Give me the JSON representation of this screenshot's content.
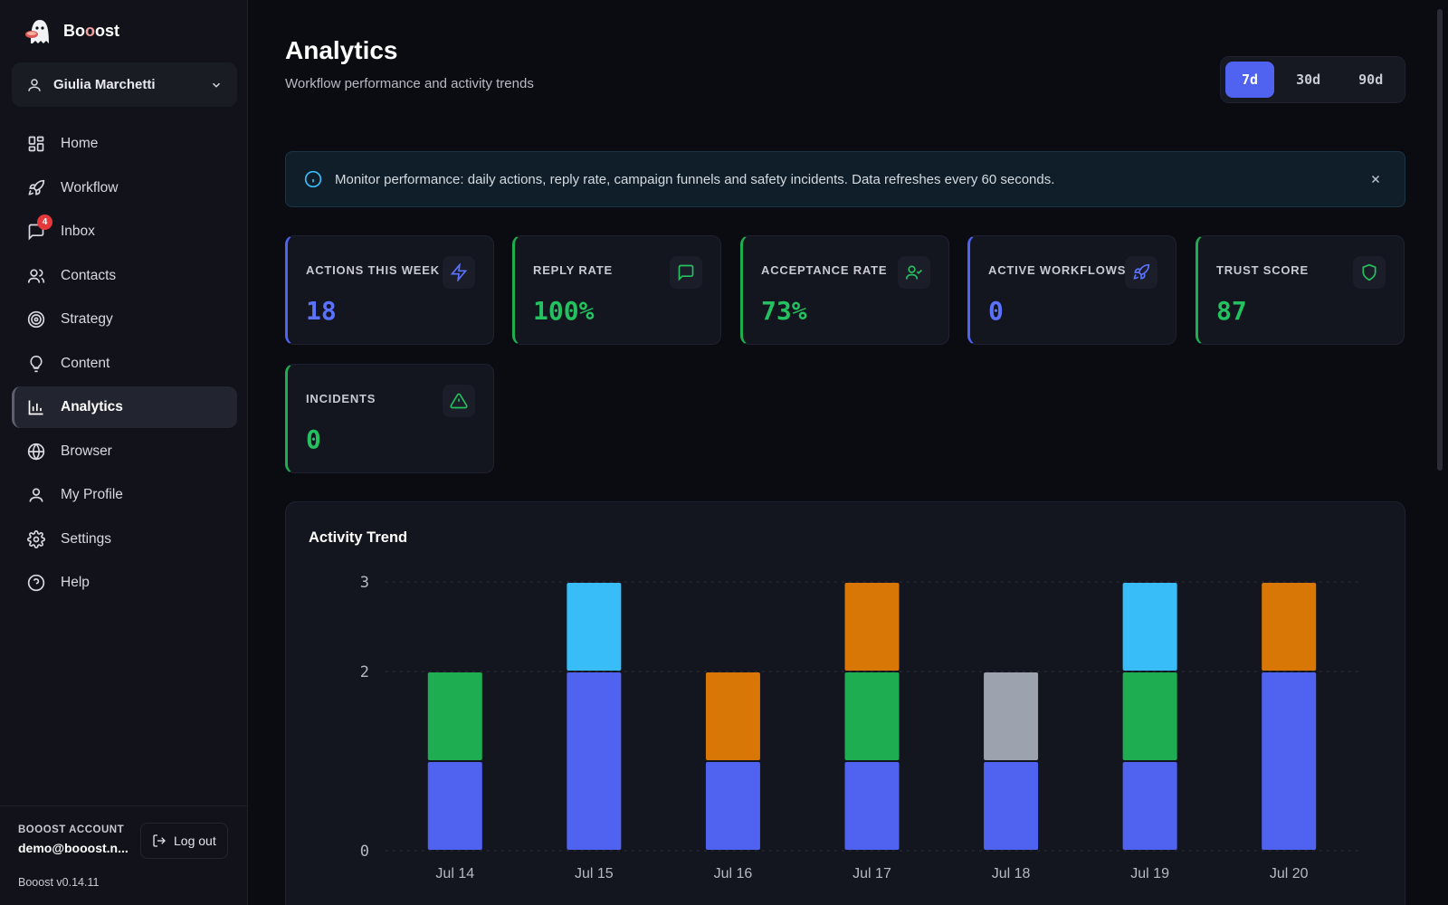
{
  "app": {
    "brand_prefix": "Bo",
    "brand_highlight": "o",
    "brand_suffix": "ost",
    "version": "Booost v0.14.11"
  },
  "user": {
    "name": "Giulia Marchetti",
    "account_label": "BOOOST ACCOUNT",
    "email": "demo@booost.n..."
  },
  "sidebar": {
    "items": [
      {
        "label": "Home",
        "icon": "grid-icon"
      },
      {
        "label": "Workflow",
        "icon": "rocket-icon"
      },
      {
        "label": "Inbox",
        "icon": "message-icon",
        "badge": "4"
      },
      {
        "label": "Contacts",
        "icon": "users-icon"
      },
      {
        "label": "Strategy",
        "icon": "target-icon"
      },
      {
        "label": "Content",
        "icon": "lightbulb-icon"
      },
      {
        "label": "Analytics",
        "icon": "bar-chart-icon",
        "active": true
      },
      {
        "label": "Browser",
        "icon": "globe-icon"
      },
      {
        "label": "My Profile",
        "icon": "user-icon"
      },
      {
        "label": "Settings",
        "icon": "gear-icon"
      },
      {
        "label": "Help",
        "icon": "help-circle-icon"
      }
    ],
    "logout_label": "Log out"
  },
  "header": {
    "title": "Analytics",
    "subtitle": "Workflow performance and activity trends",
    "ranges": [
      "7d",
      "30d",
      "90d"
    ],
    "selected_range": "7d"
  },
  "alert": {
    "text": "Monitor performance: daily actions, reply rate, campaign funnels and safety incidents. Data refreshes every 60 seconds."
  },
  "stats": [
    {
      "label": "ACTIONS THIS WEEK",
      "value": "18",
      "tone": "blue",
      "icon": "lightning-icon"
    },
    {
      "label": "REPLY RATE",
      "value": "100%",
      "tone": "green",
      "icon": "message-icon"
    },
    {
      "label": "ACCEPTANCE RATE",
      "value": "73%",
      "tone": "green",
      "icon": "user-check-icon"
    },
    {
      "label": "ACTIVE WORKFLOWS",
      "value": "0",
      "tone": "blue",
      "icon": "rocket-icon"
    },
    {
      "label": "TRUST SCORE",
      "value": "87",
      "tone": "green",
      "icon": "shield-icon"
    },
    {
      "label": "INCIDENTS",
      "value": "0",
      "tone": "green",
      "icon": "warning-triangle-icon"
    }
  ],
  "colors": {
    "accent": "#4f63f0",
    "green": "#1fad52",
    "sky": "#38bdf8",
    "orange": "#d97706",
    "gray": "#9ca3af"
  },
  "chart_data": {
    "type": "bar",
    "stacked": true,
    "title": "Activity Trend",
    "categories": [
      "Jul 14",
      "Jul 15",
      "Jul 16",
      "Jul 17",
      "Jul 18",
      "Jul 19",
      "Jul 20"
    ],
    "series": [
      {
        "color": "#4f63f0",
        "values": [
          1,
          2,
          1,
          1,
          1,
          1,
          2
        ]
      },
      {
        "color": "#1fad52",
        "values": [
          1,
          0,
          0,
          1,
          0,
          1,
          0
        ]
      },
      {
        "color": "#38bdf8",
        "values": [
          0,
          1,
          0,
          0,
          0,
          1,
          0
        ]
      },
      {
        "color": "#d97706",
        "values": [
          0,
          0,
          1,
          1,
          0,
          0,
          1
        ]
      },
      {
        "color": "#9ca3af",
        "values": [
          0,
          0,
          0,
          0,
          1,
          0,
          0
        ]
      }
    ],
    "yticks": [
      "0",
      "2",
      "3"
    ],
    "ylim": [
      0,
      3
    ],
    "grid": true
  }
}
